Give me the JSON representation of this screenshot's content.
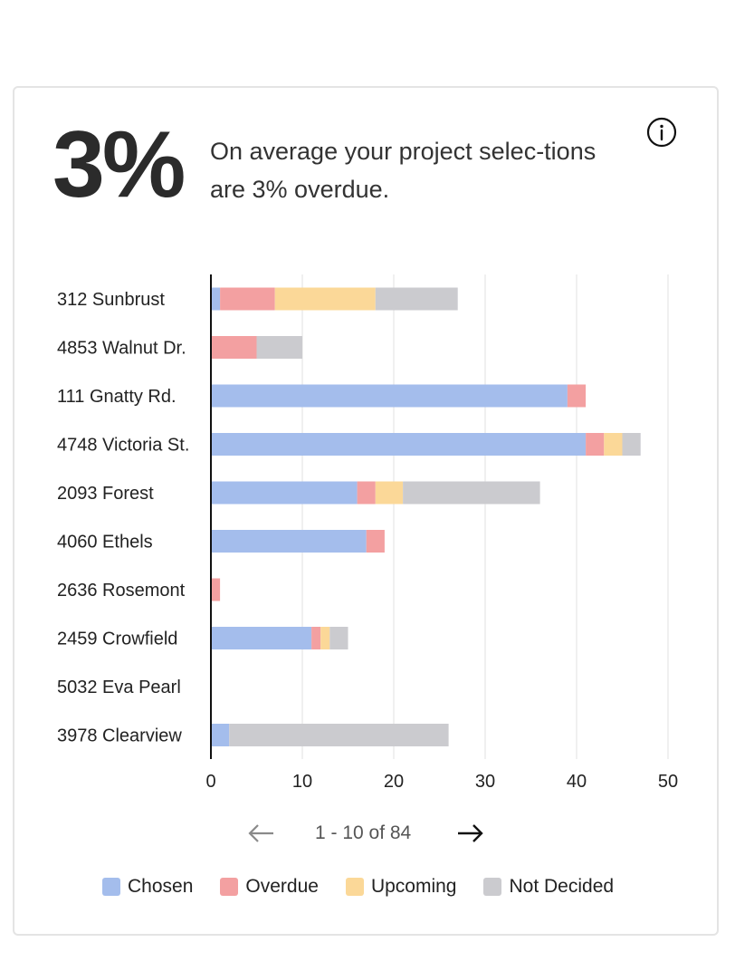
{
  "summary": {
    "percent": "3%",
    "text": "On average your project selec-tions are 3% overdue."
  },
  "icons": {
    "info": "info-circle-icon",
    "prev": "arrow-left-icon",
    "next": "arrow-right-icon"
  },
  "pagination": {
    "label": "1 - 10 of 84"
  },
  "colors": {
    "Chosen": "#a4bdec",
    "Overdue": "#f3a0a1",
    "Upcoming": "#fbd898",
    "Not Decided": "#cbcbcf",
    "grid": "#e6e6e6",
    "axis": "#111111"
  },
  "legend": [
    {
      "label": "Chosen",
      "color": "#a4bdec"
    },
    {
      "label": "Overdue",
      "color": "#f3a0a1"
    },
    {
      "label": "Upcoming",
      "color": "#fbd898"
    },
    {
      "label": "Not Decided",
      "color": "#cbcbcf"
    }
  ],
  "chart_data": {
    "type": "bar",
    "orientation": "horizontal",
    "stacked": true,
    "title": "",
    "xlabel": "",
    "ylabel": "",
    "xlim": [
      0,
      50
    ],
    "xticks": [
      0,
      10,
      20,
      30,
      40,
      50
    ],
    "grid": true,
    "legend_position": "bottom",
    "categories": [
      "312 Sunbrust",
      "4853 Walnut Dr.",
      "111 Gnatty Rd.",
      "4748 Victoria St.",
      "2093 Forest",
      "4060 Ethels",
      "2636 Rosemont",
      "2459 Crowfield",
      "5032 Eva Pearl",
      "3978 Clearview"
    ],
    "series": [
      {
        "name": "Chosen",
        "values": [
          1,
          0,
          39,
          41,
          16,
          17,
          0,
          11,
          0,
          2
        ]
      },
      {
        "name": "Overdue",
        "values": [
          6,
          5,
          2,
          2,
          2,
          2,
          1,
          1,
          0,
          0
        ]
      },
      {
        "name": "Upcoming",
        "values": [
          11,
          0,
          0,
          2,
          3,
          0,
          0,
          1,
          0,
          0
        ]
      },
      {
        "name": "Not Decided",
        "values": [
          9,
          5,
          0,
          2,
          15,
          0,
          0,
          2,
          0,
          24
        ]
      }
    ]
  }
}
